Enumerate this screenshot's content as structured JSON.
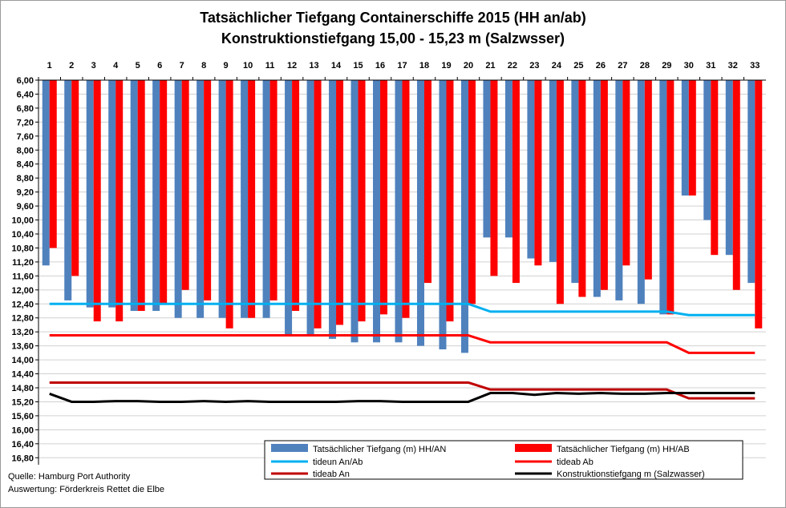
{
  "chart_data": {
    "type": "bar",
    "title": "Tatsächlicher  Tiefgang Containerschiffe  2015 (HH an/ab)",
    "subtitle": "Konstruktionstiefgang  15,00 - 15,23 m (Salzwsser)",
    "categories": [
      "1",
      "2",
      "3",
      "4",
      "5",
      "6",
      "7",
      "8",
      "9",
      "10",
      "11",
      "12",
      "13",
      "14",
      "15",
      "16",
      "17",
      "18",
      "19",
      "20",
      "21",
      "22",
      "23",
      "24",
      "25",
      "26",
      "27",
      "28",
      "29",
      "30",
      "31",
      "32",
      "33"
    ],
    "y_axis": {
      "inverted": true,
      "ylim": [
        6.0,
        17.0
      ],
      "tick_labels": [
        "6,00",
        "6,40",
        "6,80",
        "7,20",
        "7,60",
        "8,00",
        "8,40",
        "8,80",
        "9,20",
        "9,60",
        "10,00",
        "10,40",
        "10,80",
        "11,20",
        "11,60",
        "12,00",
        "12,40",
        "12,80",
        "13,20",
        "13,60",
        "14,00",
        "14,40",
        "14,80",
        "15,20",
        "15,60",
        "16,00",
        "16,40",
        "16,80"
      ],
      "tick_values": [
        6.0,
        6.4,
        6.8,
        7.2,
        7.6,
        8.0,
        8.4,
        8.8,
        9.2,
        9.6,
        10.0,
        10.4,
        10.8,
        11.2,
        11.6,
        12.0,
        12.4,
        12.8,
        13.2,
        13.6,
        14.0,
        14.4,
        14.8,
        15.2,
        15.6,
        16.0,
        16.4,
        16.8
      ]
    },
    "grid": true,
    "series": [
      {
        "name": "Tatsächlicher Tiefgang (m) HH/AN",
        "kind": "bar",
        "color": "#4f81bd",
        "values": [
          11.3,
          12.3,
          12.5,
          12.5,
          12.6,
          12.6,
          12.8,
          12.8,
          12.8,
          12.8,
          12.8,
          13.3,
          13.3,
          13.4,
          13.5,
          13.5,
          13.5,
          13.6,
          13.7,
          13.8,
          10.5,
          10.5,
          11.1,
          11.2,
          11.8,
          12.2,
          12.3,
          12.4,
          12.7,
          9.3,
          10.0,
          11.0,
          11.8
        ]
      },
      {
        "name": "Tatsächlicher Tiefgang (m) HH/AB",
        "kind": "bar",
        "color": "#ff0000",
        "values": [
          10.8,
          11.6,
          12.9,
          12.9,
          12.6,
          12.4,
          12.0,
          12.3,
          13.1,
          12.8,
          12.3,
          12.6,
          13.1,
          13.0,
          12.9,
          12.7,
          12.8,
          11.8,
          12.9,
          12.4,
          11.6,
          11.8,
          11.3,
          12.4,
          12.2,
          12.0,
          11.3,
          11.7,
          12.7,
          9.3,
          11.0,
          12.0,
          13.1
        ]
      },
      {
        "name": "tideun An/Ab",
        "kind": "line",
        "color": "#00b0f0",
        "values": [
          12.4,
          12.4,
          12.4,
          12.4,
          12.4,
          12.4,
          12.4,
          12.4,
          12.4,
          12.4,
          12.4,
          12.4,
          12.4,
          12.4,
          12.4,
          12.4,
          12.4,
          12.4,
          12.4,
          12.4,
          12.62,
          12.62,
          12.62,
          12.62,
          12.62,
          12.62,
          12.62,
          12.62,
          12.62,
          12.72,
          12.72,
          12.72,
          12.72
        ]
      },
      {
        "name": "tideab Ab",
        "kind": "line",
        "color": "#ff0000",
        "values": [
          13.3,
          13.3,
          13.3,
          13.3,
          13.3,
          13.3,
          13.3,
          13.3,
          13.3,
          13.3,
          13.3,
          13.3,
          13.3,
          13.3,
          13.3,
          13.3,
          13.3,
          13.3,
          13.3,
          13.3,
          13.5,
          13.5,
          13.5,
          13.5,
          13.5,
          13.5,
          13.5,
          13.5,
          13.5,
          13.8,
          13.8,
          13.8,
          13.8
        ]
      },
      {
        "name": "tideab An",
        "kind": "line",
        "color": "#c00000",
        "values": [
          14.65,
          14.65,
          14.65,
          14.65,
          14.65,
          14.65,
          14.65,
          14.65,
          14.65,
          14.65,
          14.65,
          14.65,
          14.65,
          14.65,
          14.65,
          14.65,
          14.65,
          14.65,
          14.65,
          14.65,
          14.85,
          14.85,
          14.85,
          14.85,
          14.85,
          14.85,
          14.85,
          14.85,
          14.85,
          15.1,
          15.1,
          15.1,
          15.1
        ]
      },
      {
        "name": "Konstruktionstiefgang  m (Salzwasser)",
        "kind": "line",
        "color": "#000000",
        "values": [
          14.97,
          15.2,
          15.2,
          15.18,
          15.18,
          15.2,
          15.2,
          15.18,
          15.2,
          15.18,
          15.2,
          15.2,
          15.2,
          15.2,
          15.18,
          15.18,
          15.2,
          15.2,
          15.2,
          15.2,
          14.95,
          14.95,
          15.0,
          14.95,
          14.97,
          14.95,
          14.97,
          14.97,
          14.95,
          14.95,
          14.95,
          14.95,
          14.95
        ]
      }
    ],
    "legend_placement": "bottom-right"
  },
  "source_lines": [
    "Quelle: Hamburg Port Authority",
    "Auswertung: Förderkreis Rettet die Elbe"
  ]
}
